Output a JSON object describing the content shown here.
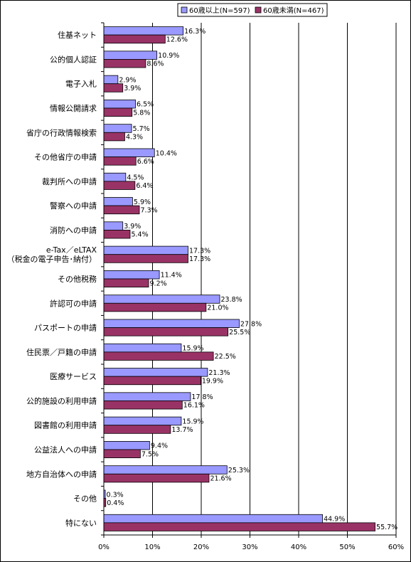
{
  "chart_data": {
    "type": "bar",
    "orientation": "horizontal",
    "categories": [
      "住基ネット",
      "公的個人認証",
      "電子入札",
      "情報公開請求",
      "省庁の行政情報検索",
      "その他省庁の申請",
      "裁判所への申請",
      "警察への申請",
      "消防への申請",
      [
        "e-Tax／eLTAX",
        "（税金の電子申告･納付）"
      ],
      "その他税務",
      "許認可の申請",
      "パスポートの申請",
      "住民票／戸籍の申請",
      "医療サービス",
      "公的施設の利用申請",
      "図書館の利用申請",
      "公益法人への申請",
      "地方自治体への申請",
      "その他",
      "特にない"
    ],
    "series": [
      {
        "name": "60歳以上(N=597)",
        "color": "#9999ff",
        "values": [
          16.3,
          10.9,
          2.9,
          6.5,
          5.7,
          10.4,
          4.5,
          5.9,
          3.9,
          17.3,
          11.4,
          23.8,
          27.8,
          15.9,
          21.3,
          17.8,
          15.9,
          9.4,
          25.3,
          0.3,
          44.9
        ],
        "labels": [
          "16.3%",
          "10.9%",
          "2.9%",
          "6.5%",
          "5.7%",
          "10.4%",
          "4.5%",
          "5.9%",
          "3.9%",
          "17.3%",
          "11.4%",
          "23.8%",
          "27.8%",
          "15.9%",
          "21.3%",
          "17.8%",
          "15.9%",
          "9.4%",
          "25.3%",
          "0.3%",
          "44.9%"
        ]
      },
      {
        "name": "60歳未満(N=467)",
        "color": "#993366",
        "values": [
          12.6,
          8.6,
          3.9,
          5.8,
          4.3,
          6.6,
          6.4,
          7.3,
          5.4,
          17.3,
          9.2,
          21.0,
          25.5,
          22.5,
          19.9,
          16.1,
          13.7,
          7.5,
          21.6,
          0.4,
          55.7
        ],
        "labels": [
          "12.6%",
          "8.6%",
          "3.9%",
          "5.8%",
          "4.3%",
          "6.6%",
          "6.4%",
          "7.3%",
          "5.4%",
          "17.3%",
          "9.2%",
          "21.0%",
          "25.5%",
          "22.5%",
          "19.9%",
          "16.1%",
          "13.7%",
          "7.5%",
          "21.6%",
          "0.4%",
          "55.7%"
        ]
      }
    ],
    "xlim": [
      0,
      60
    ],
    "xticks": [
      0,
      10,
      20,
      30,
      40,
      50,
      60
    ],
    "xtick_labels": [
      "0%",
      "10%",
      "20%",
      "30%",
      "40%",
      "50%",
      "60%"
    ],
    "grid": true,
    "legend_position": "top-right"
  }
}
